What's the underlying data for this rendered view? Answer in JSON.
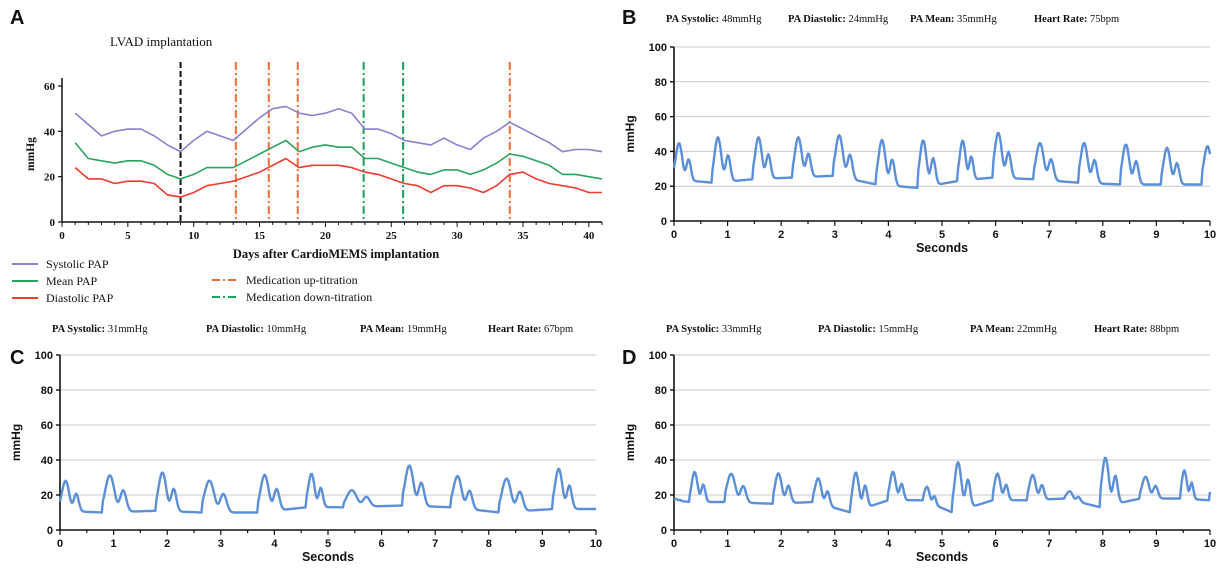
{
  "chart_data": [
    {
      "panel": "A",
      "type": "line",
      "annotation": "LVAD implantation",
      "xlabel": "Days after CardioMEMS implantation",
      "ylabel": "mmHg",
      "xlim": [
        0,
        41
      ],
      "ylim": [
        0,
        60
      ],
      "xticks": [
        0,
        5,
        10,
        15,
        20,
        25,
        30,
        35,
        40
      ],
      "yticks": [
        0,
        20,
        40,
        60
      ],
      "series": [
        {
          "name": "Systolic PAP",
          "color": "#8b7fd0",
          "x": [
            1,
            2,
            3,
            4,
            5,
            6,
            7,
            8,
            9,
            10,
            11,
            12,
            13,
            14,
            15,
            16,
            17,
            18,
            19,
            20,
            21,
            22,
            23,
            24,
            25,
            26,
            27,
            28,
            29,
            30,
            31,
            32,
            33,
            34,
            35,
            36,
            37,
            38,
            39,
            40,
            41
          ],
          "y": [
            48,
            43,
            38,
            40,
            41,
            41,
            38,
            34,
            31,
            36,
            40,
            38,
            36,
            41,
            46,
            50,
            51,
            48,
            47,
            48,
            50,
            48,
            41,
            41,
            39,
            36,
            35,
            34,
            37,
            34,
            32,
            37,
            40,
            44,
            41,
            38,
            35,
            31,
            32,
            32,
            31
          ]
        },
        {
          "name": "Mean PAP",
          "color": "#2aa45a",
          "x": [
            1,
            2,
            3,
            4,
            5,
            6,
            7,
            8,
            9,
            10,
            11,
            12,
            13,
            14,
            15,
            16,
            17,
            18,
            19,
            20,
            21,
            22,
            23,
            24,
            25,
            26,
            27,
            28,
            29,
            30,
            31,
            32,
            33,
            34,
            35,
            36,
            37,
            38,
            39,
            40,
            41
          ],
          "y": [
            35,
            28,
            27,
            26,
            27,
            27,
            25,
            21,
            19,
            21,
            24,
            24,
            24,
            27,
            30,
            33,
            36,
            31,
            33,
            34,
            33,
            33,
            28,
            28,
            26,
            24,
            22,
            21,
            23,
            23,
            21,
            23,
            26,
            30,
            29,
            27,
            25,
            21,
            21,
            20,
            19
          ]
        },
        {
          "name": "Diastolic PAP",
          "color": "#ee3b2c",
          "x": [
            1,
            2,
            3,
            4,
            5,
            6,
            7,
            8,
            9,
            10,
            11,
            12,
            13,
            14,
            15,
            16,
            17,
            18,
            19,
            20,
            21,
            22,
            23,
            24,
            25,
            26,
            27,
            28,
            29,
            30,
            31,
            32,
            33,
            34,
            35,
            36,
            37,
            38,
            39,
            40,
            41
          ],
          "y": [
            24,
            19,
            19,
            17,
            18,
            18,
            17,
            12,
            11,
            13,
            16,
            17,
            18,
            20,
            22,
            25,
            28,
            24,
            25,
            25,
            25,
            24,
            22,
            21,
            19,
            17,
            16,
            13,
            16,
            16,
            15,
            13,
            16,
            21,
            22,
            19,
            17,
            16,
            15,
            13,
            13
          ]
        }
      ],
      "vlines": [
        {
          "x": 9,
          "color": "#111111",
          "style": "dash",
          "kind": "lvad"
        },
        {
          "x": 13.2,
          "color": "#f26b3a",
          "style": "dashdot",
          "kind": "up"
        },
        {
          "x": 15.7,
          "color": "#f26b3a",
          "style": "dashdot",
          "kind": "up"
        },
        {
          "x": 17.9,
          "color": "#f26b3a",
          "style": "dashdot",
          "kind": "up"
        },
        {
          "x": 22.9,
          "color": "#1aa05a",
          "style": "dashdot",
          "kind": "down"
        },
        {
          "x": 25.9,
          "color": "#1aa05a",
          "style": "dashdot",
          "kind": "down"
        },
        {
          "x": 34.0,
          "color": "#f26b3a",
          "style": "dashdot",
          "kind": "up"
        }
      ],
      "legend": [
        {
          "label": "Systolic PAP",
          "color": "#8b7fd0",
          "style": "solid"
        },
        {
          "label": "Mean PAP",
          "color": "#2aa45a",
          "style": "solid"
        },
        {
          "label": "Diastolic PAP",
          "color": "#ee3b2c",
          "style": "solid"
        },
        {
          "label": "Medication up-titration",
          "color": "#f26b3a",
          "style": "dashdot"
        },
        {
          "label": "Medication down-titration",
          "color": "#1aa05a",
          "style": "dashdot"
        }
      ]
    },
    {
      "panel": "B",
      "type": "line",
      "header": [
        {
          "label": "PA Systolic:",
          "value": "48mmHg"
        },
        {
          "label": "PA Diastolic:",
          "value": "24mmHg"
        },
        {
          "label": "PA Mean:",
          "value": "35mmHg"
        },
        {
          "label": "Heart Rate:",
          "value": "75bpm"
        }
      ],
      "xlabel": "Seconds",
      "ylabel": "mmHg",
      "xlim": [
        0,
        10
      ],
      "ylim": [
        0,
        100
      ],
      "xticks": [
        0,
        1,
        2,
        3,
        4,
        5,
        6,
        7,
        8,
        9,
        10
      ],
      "yticks": [
        0,
        20,
        40,
        60,
        80,
        100
      ],
      "color": "#5b8fd8",
      "waveform": {
        "beat_times": [
          0.0,
          0.72,
          1.48,
          2.22,
          2.98,
          3.78,
          4.55,
          5.3,
          5.95,
          6.72,
          7.55,
          8.33,
          9.1,
          9.85
        ],
        "peaks": [
          46,
          49,
          49,
          49,
          51,
          48,
          47,
          47,
          52,
          46,
          46,
          45,
          43,
          44
        ],
        "troughs": [
          24,
          22,
          24,
          25,
          26,
          21,
          19,
          23,
          25,
          24,
          22,
          21,
          21,
          21
        ]
      }
    },
    {
      "panel": "C",
      "type": "line",
      "header": [
        {
          "label": "PA Systolic:",
          "value": "31mmHg"
        },
        {
          "label": "PA Diastolic:",
          "value": "10mmHg"
        },
        {
          "label": "PA Mean:",
          "value": "19mmHg"
        },
        {
          "label": "Heart Rate:",
          "value": "67bpm"
        }
      ],
      "xlabel": "Seconds",
      "ylabel": "mmHg",
      "xlim": [
        0,
        10
      ],
      "ylim": [
        0,
        100
      ],
      "xticks": [
        0,
        1,
        2,
        3,
        4,
        5,
        6,
        7,
        8,
        9,
        10
      ],
      "yticks": [
        0,
        20,
        40,
        60,
        80,
        100
      ],
      "color": "#5b8fd8",
      "waveform": {
        "beat_times": [
          0.0,
          0.8,
          1.8,
          2.65,
          3.7,
          4.6,
          5.3,
          6.4,
          7.3,
          8.2,
          9.2
        ],
        "peaks": [
          29,
          32,
          34,
          29,
          32,
          33,
          23,
          38,
          32,
          30,
          36
        ],
        "troughs": [
          11,
          10,
          11,
          10,
          10,
          13,
          13,
          14,
          13,
          10,
          12
        ]
      }
    },
    {
      "panel": "D",
      "type": "line",
      "header": [
        {
          "label": "PA Systolic:",
          "value": "33mmHg"
        },
        {
          "label": "PA Diastolic:",
          "value": "15mmHg"
        },
        {
          "label": "PA Mean:",
          "value": "22mmHg"
        },
        {
          "label": "Heart Rate:",
          "value": "88bpm"
        }
      ],
      "xlabel": "Seconds",
      "ylabel": "mmHg",
      "xlim": [
        0,
        10
      ],
      "ylim": [
        0,
        100
      ],
      "xticks": [
        0,
        1,
        2,
        3,
        4,
        5,
        6,
        7,
        8,
        9,
        10
      ],
      "yticks": [
        0,
        20,
        40,
        60,
        80,
        100
      ],
      "color": "#5b8fd8",
      "waveform": {
        "beat_times": [
          0.0,
          0.3,
          0.95,
          1.85,
          2.6,
          3.3,
          4.0,
          4.65,
          5.2,
          5.95,
          6.6,
          7.3,
          7.95,
          8.7,
          9.45,
          10.0
        ],
        "peaks": [
          18,
          34,
          33,
          33,
          31,
          33,
          34,
          26,
          39,
          33,
          32,
          23,
          42,
          31,
          35,
          33
        ],
        "troughs": [
          17,
          16,
          16,
          15,
          16,
          10,
          17,
          17,
          10,
          17,
          17,
          18,
          13,
          18,
          18,
          17
        ]
      }
    }
  ],
  "panel_letters": [
    "A",
    "B",
    "C",
    "D"
  ]
}
